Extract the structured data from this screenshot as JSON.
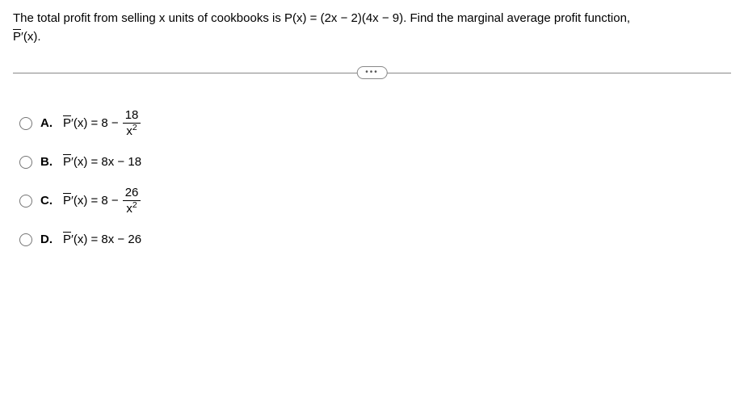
{
  "question": {
    "line1": "The total profit from selling x units of cookbooks is P(x) = (2x − 2)(4x − 9). Find the marginal average profit function,",
    "pbar": "P",
    "prime_x": "′(x)."
  },
  "divider_dots": "•••",
  "options": {
    "a": {
      "letter": "A.",
      "prefix_pbar": "P",
      "prefix_rest": "′(x) = 8 −",
      "frac_num": "18",
      "frac_den_base": "x",
      "frac_den_exp": "2"
    },
    "b": {
      "letter": "B.",
      "prefix_pbar": "P",
      "rest": "′(x) = 8x − 18"
    },
    "c": {
      "letter": "C.",
      "prefix_pbar": "P",
      "prefix_rest": "′(x) = 8 −",
      "frac_num": "26",
      "frac_den_base": "x",
      "frac_den_exp": "2"
    },
    "d": {
      "letter": "D.",
      "prefix_pbar": "P",
      "rest": "′(x) = 8x − 26"
    }
  }
}
